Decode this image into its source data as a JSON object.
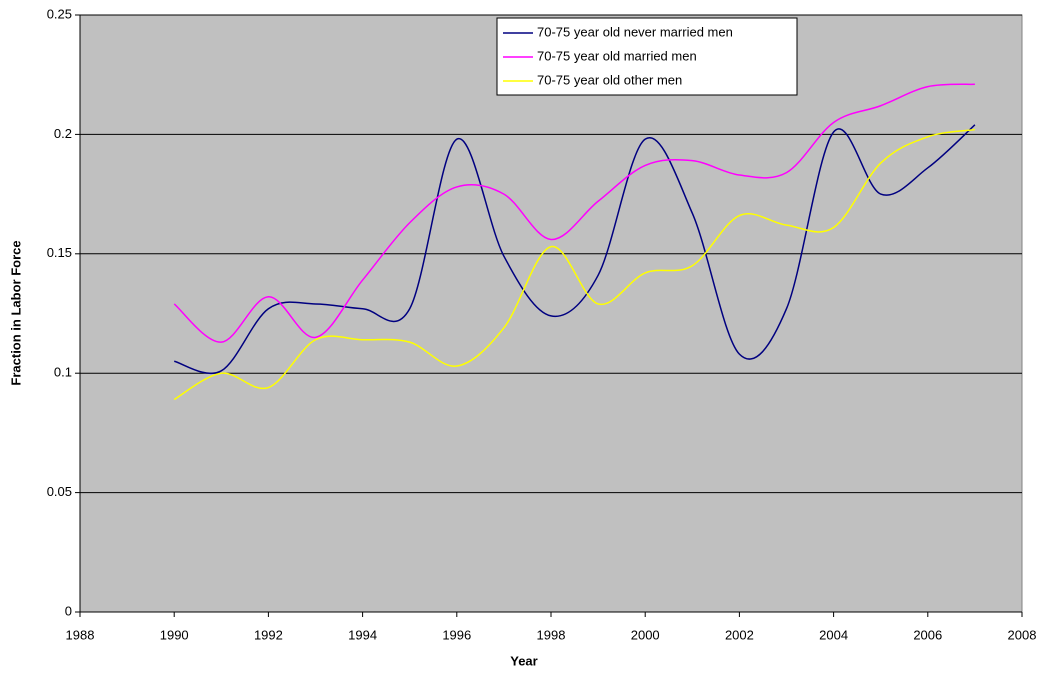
{
  "chart_data": {
    "type": "line",
    "x_label": "Year",
    "y_label": "Fraction in Labor Force",
    "x": [
      1990,
      1991,
      1992,
      1993,
      1994,
      1995,
      1996,
      1997,
      1998,
      1999,
      2000,
      2001,
      2002,
      2003,
      2004,
      2005,
      2006,
      2007
    ],
    "series": [
      {
        "name": "70-75 year old never married men",
        "color": "#000080",
        "values": [
          0.105,
          0.101,
          0.127,
          0.129,
          0.127,
          0.127,
          0.198,
          0.149,
          0.124,
          0.141,
          0.198,
          0.167,
          0.108,
          0.127,
          0.201,
          0.175,
          0.186,
          0.204
        ]
      },
      {
        "name": "70-75 year old married men",
        "color": "#ff00ff",
        "values": [
          0.129,
          0.113,
          0.132,
          0.115,
          0.139,
          0.163,
          0.178,
          0.175,
          0.156,
          0.172,
          0.187,
          0.189,
          0.183,
          0.184,
          0.205,
          0.212,
          0.22,
          0.221
        ]
      },
      {
        "name": "70-75 year old other men",
        "color": "#ffff00",
        "values": [
          0.089,
          0.1,
          0.094,
          0.114,
          0.114,
          0.113,
          0.103,
          0.119,
          0.153,
          0.129,
          0.142,
          0.145,
          0.166,
          0.162,
          0.161,
          0.188,
          0.199,
          0.202
        ]
      }
    ],
    "xlim": [
      1988,
      2008
    ],
    "xticks": [
      1988,
      1990,
      1992,
      1994,
      1996,
      1998,
      2000,
      2002,
      2004,
      2006,
      2008
    ],
    "ylim": [
      0,
      0.25
    ],
    "yticks": [
      0,
      0.05,
      0.1,
      0.15,
      0.2,
      0.25
    ],
    "grid": true,
    "legend": "top",
    "background": "#c0c0c0"
  }
}
